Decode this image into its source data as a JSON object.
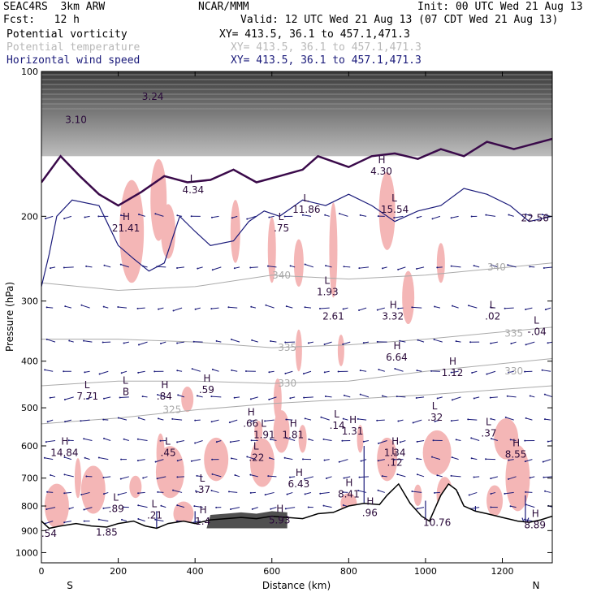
{
  "header": {
    "model": "SEAC4RS  3km ARW",
    "org": "NCAR/MMM",
    "init": "Init: 00 UTC Wed 21 Aug 13",
    "fcst": "Fcst:   12 h",
    "valid": "Valid: 12 UTC Wed 21 Aug 13 (07 CDT Wed 21 Aug 13)",
    "fields": [
      {
        "name": "Potential vorticity",
        "xy": "XY= 413.5, 36.1 to 457.1,471.3",
        "color": "#3a0a4a"
      },
      {
        "name": "Potential temperature",
        "xy": "XY= 413.5, 36.1 to 457.1,471.3",
        "color": "#b8b8b8"
      },
      {
        "name": "Horizontal wind speed",
        "xy": "XY= 413.5, 36.1 to 457.1,471.3",
        "color": "#1a1a7a"
      }
    ]
  },
  "chart_data": {
    "type": "cross-section",
    "xlabel": "Distance (km)",
    "ylabel": "Pressure (hPa)",
    "xlim": [
      0,
      1330
    ],
    "ylim": [
      1050,
      100
    ],
    "y_log_scale": true,
    "x_ticks": [
      0,
      200,
      400,
      600,
      800,
      1000,
      1200
    ],
    "y_ticks": [
      100,
      200,
      300,
      400,
      500,
      600,
      700,
      800,
      900,
      1000
    ],
    "x_end_labels": {
      "left": "S",
      "right": "N"
    },
    "theta_contours": [
      {
        "label": "325",
        "x": 340,
        "p": 505,
        "points": [
          [
            0,
            540
          ],
          [
            200,
            525
          ],
          [
            400,
            505
          ],
          [
            600,
            490
          ],
          [
            800,
            480
          ],
          [
            1000,
            470
          ],
          [
            1330,
            450
          ]
        ]
      },
      {
        "label": "330",
        "x": 640,
        "p": 445,
        "points": [
          [
            0,
            450
          ],
          [
            200,
            440
          ],
          [
            400,
            440
          ],
          [
            600,
            445
          ],
          [
            800,
            440
          ],
          [
            1000,
            420
          ],
          [
            1330,
            395
          ]
        ]
      },
      {
        "label": "335",
        "x": 640,
        "p": 375,
        "points": [
          [
            0,
            360
          ],
          [
            200,
            360
          ],
          [
            400,
            365
          ],
          [
            600,
            375
          ],
          [
            800,
            370
          ],
          [
            1000,
            360
          ],
          [
            1330,
            340
          ]
        ]
      },
      {
        "label": "340",
        "x": 625,
        "p": 265,
        "points": [
          [
            0,
            275
          ],
          [
            200,
            285
          ],
          [
            400,
            280
          ],
          [
            600,
            265
          ],
          [
            800,
            270
          ],
          [
            1000,
            265
          ],
          [
            1330,
            250
          ]
        ]
      },
      {
        "label": "330",
        "x": 1230,
        "p": 420,
        "points": []
      },
      {
        "label": "335",
        "x": 1230,
        "p": 350,
        "points": []
      },
      {
        "label": "340",
        "x": 1185,
        "p": 255,
        "points": []
      }
    ],
    "pv_extrema": [
      {
        "kind": "H",
        "value": "21.41",
        "x": 220,
        "p": 210
      },
      {
        "kind": "L",
        "value": "4.34",
        "x": 395,
        "p": 175
      },
      {
        "kind": "L",
        "value": "11.86",
        "x": 690,
        "p": 192
      },
      {
        "kind": "H",
        "value": "4.30",
        "x": 885,
        "p": 160
      },
      {
        "kind": "L",
        "value": "15.54",
        "x": 920,
        "p": 192
      },
      {
        "kind": "L",
        "value": ".75",
        "x": 625,
        "p": 210
      },
      {
        "kind": "",
        "value": "22.56",
        "x": 1285,
        "p": 200
      },
      {
        "kind": "L",
        "value": "1.93",
        "x": 745,
        "p": 285
      },
      {
        "kind": "",
        "value": "2.61",
        "x": 760,
        "p": 320
      },
      {
        "kind": "H",
        "value": "3.32",
        "x": 915,
        "p": 320
      },
      {
        "kind": "L",
        "value": ".02",
        "x": 1175,
        "p": 320
      },
      {
        "kind": "L",
        "value": "-.04",
        "x": 1290,
        "p": 345
      },
      {
        "kind": "H",
        "value": "6.64",
        "x": 925,
        "p": 390
      },
      {
        "kind": "H",
        "value": "1.12",
        "x": 1070,
        "p": 420
      },
      {
        "kind": "L",
        "value": "7.71",
        "x": 120,
        "p": 470
      },
      {
        "kind": "L",
        "value": "B",
        "x": 220,
        "p": 460
      },
      {
        "kind": "H",
        "value": ".84",
        "x": 320,
        "p": 470
      },
      {
        "kind": "H",
        "value": ".59",
        "x": 430,
        "p": 455
      },
      {
        "kind": "H",
        "value": ".66",
        "x": 545,
        "p": 535
      },
      {
        "kind": "L",
        "value": ".14",
        "x": 770,
        "p": 540
      },
      {
        "kind": "H",
        "value": "1.31",
        "x": 810,
        "p": 555
      },
      {
        "kind": "L",
        "value": ".32",
        "x": 1025,
        "p": 520
      },
      {
        "kind": "L",
        "value": "1.91",
        "x": 580,
        "p": 565
      },
      {
        "kind": "H",
        "value": "1.81",
        "x": 655,
        "p": 565
      },
      {
        "kind": "L",
        "value": ".37",
        "x": 1165,
        "p": 560
      },
      {
        "kind": "H",
        "value": "14.84",
        "x": 60,
        "p": 615
      },
      {
        "kind": "L",
        "value": ".45",
        "x": 330,
        "p": 615
      },
      {
        "kind": "L",
        "value": ".22",
        "x": 560,
        "p": 630
      },
      {
        "kind": "H",
        "value": "1.34",
        "x": 920,
        "p": 615
      },
      {
        "kind": "L",
        "value": ".12",
        "x": 920,
        "p": 645
      },
      {
        "kind": "H",
        "value": "8.55",
        "x": 1235,
        "p": 620
      },
      {
        "kind": "H",
        "value": "6.43",
        "x": 670,
        "p": 715
      },
      {
        "kind": "L",
        "value": ".37",
        "x": 420,
        "p": 735
      },
      {
        "kind": "H",
        "value": "8.41",
        "x": 800,
        "p": 750
      },
      {
        "kind": "L",
        "value": ".89",
        "x": 195,
        "p": 805
      },
      {
        "kind": "L",
        "value": ".21",
        "x": 295,
        "p": 830
      },
      {
        "kind": "H",
        "value": "1.4",
        "x": 420,
        "p": 855
      },
      {
        "kind": "H",
        "value": "5.93",
        "x": 620,
        "p": 850
      },
      {
        "kind": "H",
        "value": ".96",
        "x": 855,
        "p": 820
      },
      {
        "kind": "",
        "value": "10.76",
        "x": 1030,
        "p": 860
      },
      {
        "kind": "H",
        "value": "8.89",
        "x": 1285,
        "p": 870
      },
      {
        "kind": "",
        "value": "1.85",
        "x": 170,
        "p": 900
      },
      {
        "kind": "",
        "value": ".54",
        "x": 20,
        "p": 905
      },
      {
        "kind": "",
        "value": "3.10",
        "x": 90,
        "p": 125
      },
      {
        "kind": "",
        "value": "3.24",
        "x": 290,
        "p": 112
      }
    ]
  },
  "colors": {
    "pv_shading": "#f4b6b6",
    "terrain_fill": "#505050",
    "pv_contour": "#3a0a4a",
    "theta_contour": "#aaaaaa",
    "wind_vectors": "#1a1a7a"
  }
}
